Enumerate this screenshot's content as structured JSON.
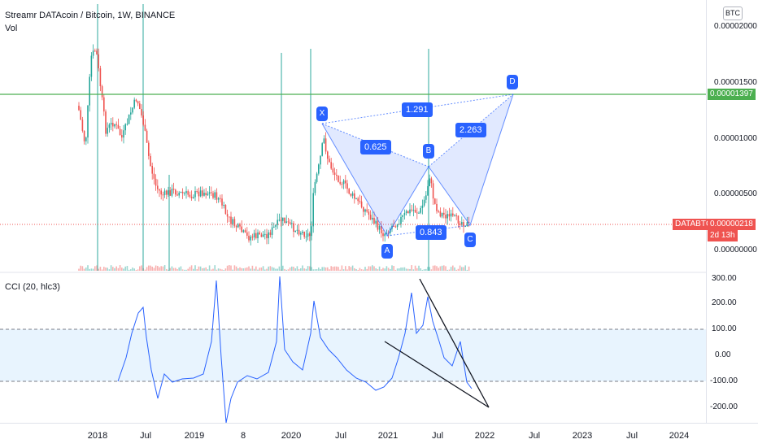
{
  "legend": {
    "title": "Streamr DATAcoin / Bitcoin, 1W, BINANCE",
    "volume_label": "Vol"
  },
  "currency_badge": "BTC",
  "price_axis": {
    "ticks": [
      "0.00002000",
      "0.00001500",
      "0.00001000",
      "0.00000500",
      "0.00000000"
    ],
    "horizontal_line_value": "0.00001397",
    "symbol_tag": "DATABTC",
    "last_price": "0.00000218",
    "countdown": "2d 13h"
  },
  "cci": {
    "label": "CCI (20, hlc3)",
    "ticks": [
      "300.00",
      "200.00",
      "100.00",
      "0.00",
      "-100.00",
      "-200.00"
    ]
  },
  "time_axis": {
    "labels": [
      "2018",
      "Jul",
      "2019",
      "8",
      "2020",
      "Jul",
      "2021",
      "Jul",
      "2022",
      "Jul",
      "2023",
      "Jul",
      "2024"
    ]
  },
  "pattern": {
    "points": [
      "X",
      "A",
      "B",
      "C",
      "D"
    ],
    "ratios": [
      "0.625",
      "1.291",
      "2.263",
      "0.843"
    ]
  },
  "colors": {
    "up": "#26a69a",
    "down": "#ef5350",
    "pattern": "#2962ff",
    "pattern_fill": "#2962ff22",
    "horizontal_line": "#4caf50",
    "cci_line": "#2962ff",
    "cci_band": "#2196f31a"
  }
}
